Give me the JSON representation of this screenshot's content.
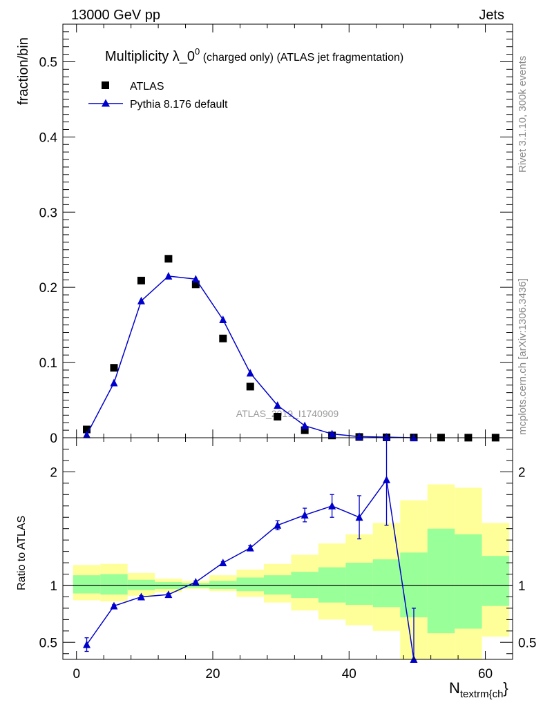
{
  "header": {
    "left": "13000 GeV pp",
    "right": "Jets"
  },
  "side_labels": {
    "rivet": "Rivet 3.1.10,  300k events",
    "mcplots": "mcplots.cern.ch [arXiv:1306.3436]"
  },
  "chart_data": [
    {
      "panel": "main",
      "type": "scatter",
      "title_main": "Multiplicity λ_0",
      "title_sup": "0",
      "title_rest": " (charged only) (ATLAS jet fragmentation)",
      "ylabel": "fraction/bin",
      "watermark": "ATLAS_2019_I1740909",
      "xlim": [
        -2,
        64
      ],
      "ylim": [
        0,
        0.55
      ],
      "y_ticks": [
        "0",
        "0.1",
        "0.2",
        "0.3",
        "0.4",
        "0.5"
      ],
      "legend": {
        "position": "top-left",
        "entries": [
          "ATLAS",
          "Pythia 8.176 default"
        ]
      },
      "series": [
        {
          "name": "ATLAS",
          "marker": "square",
          "color": "#000000",
          "x": [
            1.5,
            5.5,
            9.5,
            13.5,
            17.5,
            21.5,
            25.5,
            29.5,
            33.5,
            37.5,
            41.5,
            45.5,
            49.5,
            53.5,
            57.5,
            61.5
          ],
          "y": [
            0.011,
            0.093,
            0.209,
            0.238,
            0.204,
            0.132,
            0.068,
            0.028,
            0.01,
            0.003,
            0.001,
            0.0005,
            0.0003,
            0.0002,
            0.0001,
            0.0001
          ]
        },
        {
          "name": "Pythia 8.176 default",
          "marker": "triangle",
          "color": "#0000cc",
          "x": [
            1.5,
            5.5,
            9.5,
            13.5,
            17.5,
            21.5,
            25.5,
            29.5,
            33.5,
            37.5,
            41.5,
            45.5,
            49.5
          ],
          "y": [
            0.004,
            0.073,
            0.182,
            0.215,
            0.211,
            0.157,
            0.086,
            0.043,
            0.016,
            0.005,
            0.0015,
            0.0008,
            0.0
          ]
        }
      ]
    },
    {
      "panel": "ratio",
      "type": "line",
      "ylabel": "Ratio to ATLAS",
      "xlabel_main": "N",
      "xlabel_sub": "textrm{ch",
      "xlabel_tail": "}",
      "xlim": [
        -2,
        64
      ],
      "ylim": [
        0.35,
        2.3
      ],
      "y_ticks": [
        "0.5",
        "1",
        "2"
      ],
      "x_ticks": [
        "0",
        "20",
        "40",
        "60"
      ],
      "bands": {
        "bin_edges": [
          -0.5,
          3.5,
          7.5,
          11.5,
          15.5,
          19.5,
          23.5,
          27.5,
          31.5,
          35.5,
          39.5,
          43.5,
          47.5,
          51.5,
          55.5,
          59.5,
          63.5
        ],
        "yellow_lo": [
          0.87,
          0.86,
          0.91,
          0.94,
          0.97,
          0.95,
          0.9,
          0.85,
          0.78,
          0.7,
          0.65,
          0.6,
          0.35,
          0.35,
          0.35,
          0.55
        ],
        "yellow_hi": [
          1.18,
          1.19,
          1.11,
          1.06,
          1.04,
          1.09,
          1.14,
          1.19,
          1.27,
          1.37,
          1.45,
          1.55,
          1.75,
          1.89,
          1.86,
          1.55
        ],
        "green_lo": [
          0.93,
          0.92,
          0.96,
          0.97,
          0.98,
          0.97,
          0.95,
          0.92,
          0.89,
          0.85,
          0.83,
          0.81,
          0.72,
          0.58,
          0.62,
          0.82
        ],
        "green_hi": [
          1.09,
          1.1,
          1.05,
          1.03,
          1.02,
          1.04,
          1.07,
          1.09,
          1.12,
          1.16,
          1.2,
          1.23,
          1.29,
          1.5,
          1.45,
          1.26
        ]
      },
      "series": [
        {
          "name": "Pythia 8.176 default",
          "color": "#0000cc",
          "x": [
            1.5,
            5.5,
            9.5,
            13.5,
            17.5,
            21.5,
            25.5,
            29.5,
            33.5,
            37.5,
            41.5,
            45.5,
            49.5
          ],
          "y": [
            0.48,
            0.82,
            0.9,
            0.92,
            1.03,
            1.2,
            1.33,
            1.53,
            1.62,
            1.7,
            1.6,
            1.93,
            0.35
          ],
          "err_lo": [
            0.06,
            0.01,
            0.01,
            0.01,
            0.01,
            0.01,
            0.02,
            0.04,
            0.06,
            0.1,
            0.19,
            0.4,
            0.0
          ],
          "err_hi": [
            0.06,
            0.01,
            0.01,
            0.01,
            0.01,
            0.01,
            0.02,
            0.04,
            0.06,
            0.1,
            0.19,
            0.4,
            0.45
          ]
        }
      ]
    }
  ]
}
